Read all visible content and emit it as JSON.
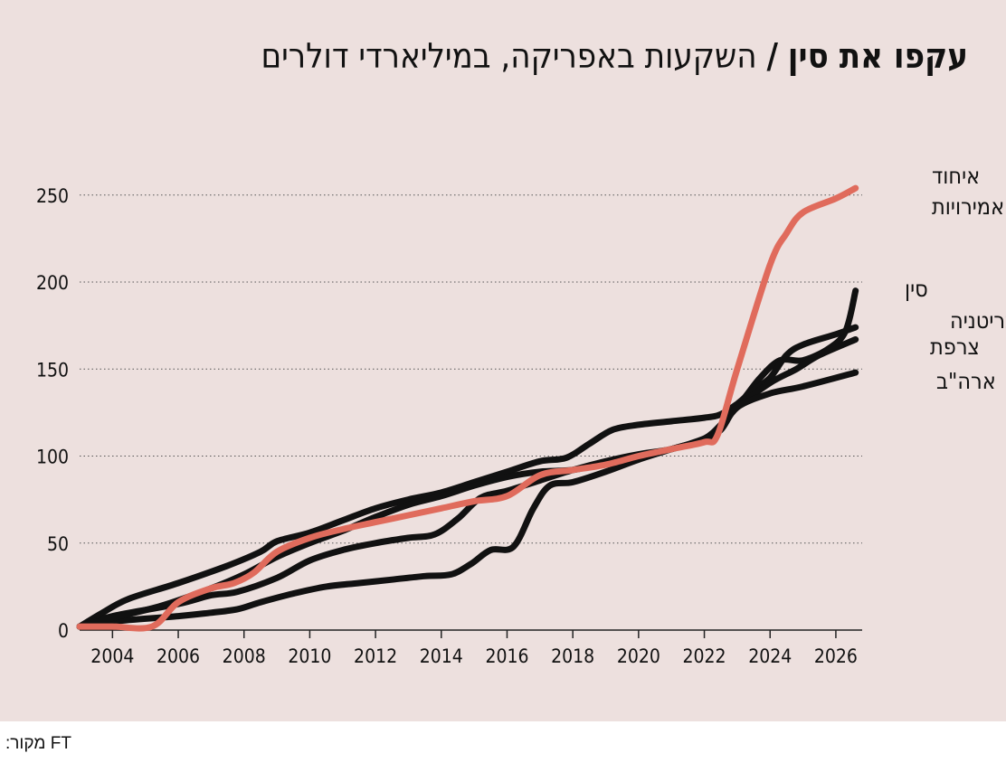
{
  "header": {
    "title_bold": "עקפו את סין",
    "title_separator": "/",
    "title_rest": "השקעות באפריקה, במיליארדי דולרים"
  },
  "source": {
    "label": "מקור:",
    "value": "FT"
  },
  "colors": {
    "background": "#ede0de",
    "uae": "#e06b5c",
    "others": "#111111",
    "gridline": "#555555"
  },
  "chart_data": {
    "type": "line",
    "title": "השקעות באפריקה, במיליארדי דולרים",
    "xlabel": "",
    "ylabel": "",
    "xlim": [
      2003,
      2026.8
    ],
    "ylim": [
      0,
      260
    ],
    "x_ticks": [
      2004,
      2006,
      2008,
      2010,
      2012,
      2014,
      2016,
      2018,
      2020,
      2022,
      2024,
      2026
    ],
    "y_ticks": [
      0,
      50,
      100,
      150,
      200,
      250
    ],
    "grid": "horizontal-dotted",
    "legend": "right-of-line-ends",
    "series": [
      {
        "name": "איחוד האמירויות",
        "label_lines": [
          "איחוד",
          "האמירויות"
        ],
        "color": "#e06b5c",
        "points": [
          [
            2003,
            2
          ],
          [
            2004,
            2
          ],
          [
            2005.2,
            2
          ],
          [
            2006,
            16
          ],
          [
            2007,
            24
          ],
          [
            2007.7,
            27
          ],
          [
            2008.3,
            33
          ],
          [
            2009,
            45
          ],
          [
            2010,
            53
          ],
          [
            2011,
            58
          ],
          [
            2012,
            62
          ],
          [
            2013,
            66
          ],
          [
            2014,
            70
          ],
          [
            2015,
            74
          ],
          [
            2016,
            77
          ],
          [
            2017,
            89
          ],
          [
            2018,
            92
          ],
          [
            2019,
            95
          ],
          [
            2020,
            100
          ],
          [
            2021,
            104
          ],
          [
            2022,
            108
          ],
          [
            2022.4,
            112
          ],
          [
            2023,
            150
          ],
          [
            2024,
            210
          ],
          [
            2024.5,
            228
          ],
          [
            2025,
            240
          ],
          [
            2026,
            248
          ],
          [
            2026.6,
            254
          ]
        ]
      },
      {
        "name": "סין",
        "label_lines": [
          "סין"
        ],
        "color": "#111111",
        "points": [
          [
            2003,
            2
          ],
          [
            2004,
            5
          ],
          [
            2006,
            8
          ],
          [
            2007,
            10
          ],
          [
            2007.8,
            12
          ],
          [
            2008.5,
            16
          ],
          [
            2009.5,
            21
          ],
          [
            2010.5,
            25
          ],
          [
            2011.5,
            27
          ],
          [
            2012.5,
            29
          ],
          [
            2013.5,
            31
          ],
          [
            2014.3,
            32
          ],
          [
            2014.9,
            38
          ],
          [
            2015.5,
            46
          ],
          [
            2016.2,
            48
          ],
          [
            2016.8,
            70
          ],
          [
            2017.3,
            83
          ],
          [
            2018,
            85
          ],
          [
            2019,
            91
          ],
          [
            2020,
            98
          ],
          [
            2021,
            104
          ],
          [
            2022,
            110
          ],
          [
            2022.6,
            120
          ],
          [
            2023.2,
            133
          ],
          [
            2023.7,
            145
          ],
          [
            2024.3,
            155
          ],
          [
            2025,
            155
          ],
          [
            2025.8,
            162
          ],
          [
            2026.3,
            172
          ],
          [
            2026.6,
            195
          ]
        ]
      },
      {
        "name": "בריטניה",
        "label_lines": [
          "בריטניה"
        ],
        "color": "#111111",
        "points": [
          [
            2003,
            2
          ],
          [
            2003.7,
            10
          ],
          [
            2004.5,
            18
          ],
          [
            2006,
            27
          ],
          [
            2007.5,
            37
          ],
          [
            2008.5,
            45
          ],
          [
            2009,
            51
          ],
          [
            2010,
            56
          ],
          [
            2011,
            63
          ],
          [
            2012,
            70
          ],
          [
            2013,
            75
          ],
          [
            2014,
            79
          ],
          [
            2015,
            85
          ],
          [
            2016,
            91
          ],
          [
            2017,
            97
          ],
          [
            2017.8,
            99
          ],
          [
            2018.5,
            107
          ],
          [
            2019.2,
            115
          ],
          [
            2020,
            118
          ],
          [
            2021,
            120
          ],
          [
            2022,
            122
          ],
          [
            2022.5,
            124
          ],
          [
            2023,
            130
          ],
          [
            2023.5,
            138
          ],
          [
            2024,
            145
          ],
          [
            2024.5,
            158
          ],
          [
            2025,
            164
          ],
          [
            2026,
            170
          ],
          [
            2026.6,
            174
          ]
        ]
      },
      {
        "name": "צרפת",
        "label_lines": [
          "צרפת"
        ],
        "color": "#111111",
        "points": [
          [
            2003,
            2
          ],
          [
            2004,
            8
          ],
          [
            2006,
            15
          ],
          [
            2007,
            20
          ],
          [
            2007.8,
            22
          ],
          [
            2009,
            30
          ],
          [
            2010,
            40
          ],
          [
            2011,
            46
          ],
          [
            2012,
            50
          ],
          [
            2013,
            53
          ],
          [
            2013.8,
            55
          ],
          [
            2014.5,
            64
          ],
          [
            2015.2,
            76
          ],
          [
            2016,
            80
          ],
          [
            2017,
            86
          ],
          [
            2018,
            92
          ],
          [
            2019,
            97
          ],
          [
            2020,
            101
          ],
          [
            2021,
            104
          ],
          [
            2022,
            110
          ],
          [
            2022.5,
            117
          ],
          [
            2023,
            128
          ],
          [
            2024,
            142
          ],
          [
            2024.8,
            150
          ],
          [
            2025.5,
            158
          ],
          [
            2026.6,
            167
          ]
        ]
      },
      {
        "name": "ארה\"ב",
        "label_lines": [
          "ארה\"ב"
        ],
        "color": "#111111",
        "points": [
          [
            2003,
            2
          ],
          [
            2004,
            7
          ],
          [
            2005.5,
            14
          ],
          [
            2007,
            24
          ],
          [
            2008,
            32
          ],
          [
            2009,
            42
          ],
          [
            2010,
            50
          ],
          [
            2011,
            57
          ],
          [
            2012,
            65
          ],
          [
            2013,
            72
          ],
          [
            2014,
            77
          ],
          [
            2015,
            83
          ],
          [
            2016,
            88
          ],
          [
            2017,
            91
          ],
          [
            2018,
            92
          ],
          [
            2019,
            96
          ],
          [
            2020,
            100
          ],
          [
            2021,
            104
          ],
          [
            2022,
            110
          ],
          [
            2022.5,
            115
          ],
          [
            2023,
            128
          ],
          [
            2024,
            136
          ],
          [
            2025,
            140
          ],
          [
            2026.6,
            148
          ]
        ]
      }
    ]
  }
}
